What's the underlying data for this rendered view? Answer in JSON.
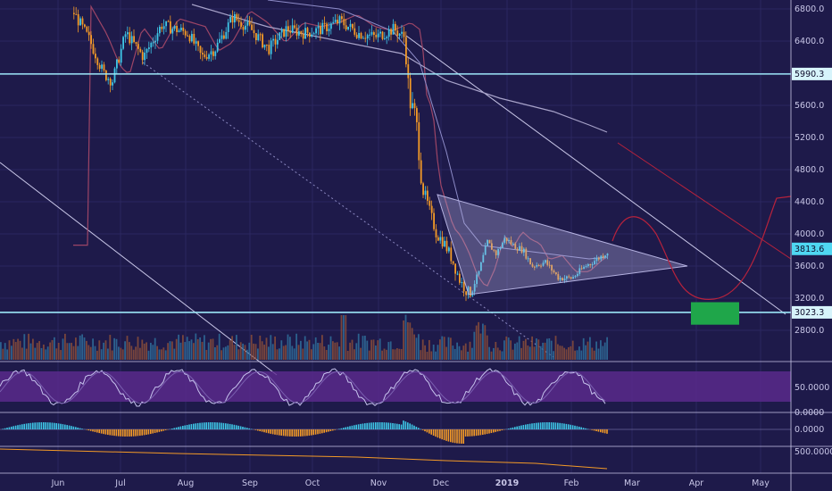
{
  "chart_data": {
    "type": "candlestick",
    "price_axis": {
      "ticks": [
        "6800.0",
        "6400.0",
        "6000.0",
        "5600.0",
        "5200.0",
        "4800.0",
        "4400.0",
        "4000.0",
        "3600.0",
        "3200.0",
        "2800.0"
      ],
      "tick_values": [
        6800,
        6400,
        6000,
        5600,
        5200,
        4800,
        4400,
        4000,
        3600,
        3200,
        2800
      ],
      "range": [
        2560,
        6980
      ]
    },
    "time_axis": {
      "labels": [
        "Jun",
        "Jul",
        "Aug",
        "Sep",
        "Oct",
        "Nov",
        "Dec",
        "2019",
        "Feb",
        "Mar",
        "Apr",
        "May"
      ],
      "bold": [
        "2019"
      ]
    },
    "horizontal_levels": [
      {
        "value": 5990.3,
        "label": "5990.3"
      },
      {
        "value": 3023.3,
        "label": "3023.3"
      }
    ],
    "last_price": {
      "value": 3813.6,
      "label": "3813.6"
    },
    "target_zone": {
      "low": 2870,
      "high": 3150,
      "color": "#1fa64a"
    },
    "stoch_panel": {
      "ticks": [
        "50.0000",
        "0.0000"
      ]
    },
    "macd_panel": {
      "ticks": [
        "0.0000"
      ]
    },
    "bottom_panel": {
      "ticks": [
        "500.0000"
      ]
    },
    "colors": {
      "background": "#1e1a4a",
      "up": "#3ec6e6",
      "down": "#f39a27",
      "level_line": "#9ce6f7",
      "triangle": "#b4b1e0",
      "projection": "#b8223c",
      "stoch_band": "#5c2b8f"
    },
    "candles": []
  }
}
